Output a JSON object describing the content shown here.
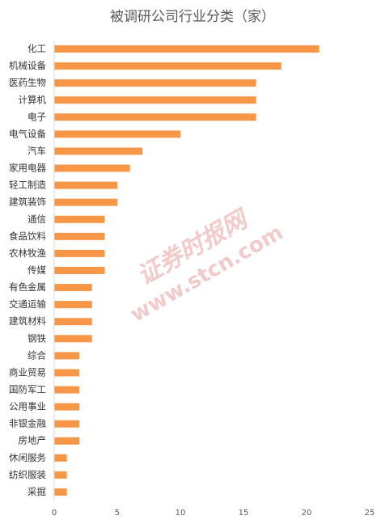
{
  "chart_data": {
    "type": "hbar",
    "title": "被调研公司行业分类（家）",
    "categories": [
      "化工",
      "机械设备",
      "医药生物",
      "计算机",
      "电子",
      "电气设备",
      "汽车",
      "家用电器",
      "轻工制造",
      "建筑装饰",
      "通信",
      "食品饮料",
      "农林牧渔",
      "传媒",
      "有色金属",
      "交通运输",
      "建筑材料",
      "钢铁",
      "综合",
      "商业贸易",
      "国防军工",
      "公用事业",
      "非银金融",
      "房地产",
      "休闲服务",
      "纺织服装",
      "采掘"
    ],
    "values": [
      21,
      18,
      16,
      16,
      16,
      10,
      7,
      6,
      5,
      5,
      4,
      4,
      4,
      4,
      3,
      3,
      3,
      3,
      2,
      2,
      2,
      2,
      2,
      2,
      1,
      1,
      1
    ],
    "color": "#f79646",
    "xlim": [
      0,
      25
    ],
    "xticks": [
      0,
      5,
      10,
      15,
      20,
      25
    ],
    "grid": false
  },
  "watermark": {
    "logo": "证券时报网",
    "url": "www.stcn.com"
  }
}
